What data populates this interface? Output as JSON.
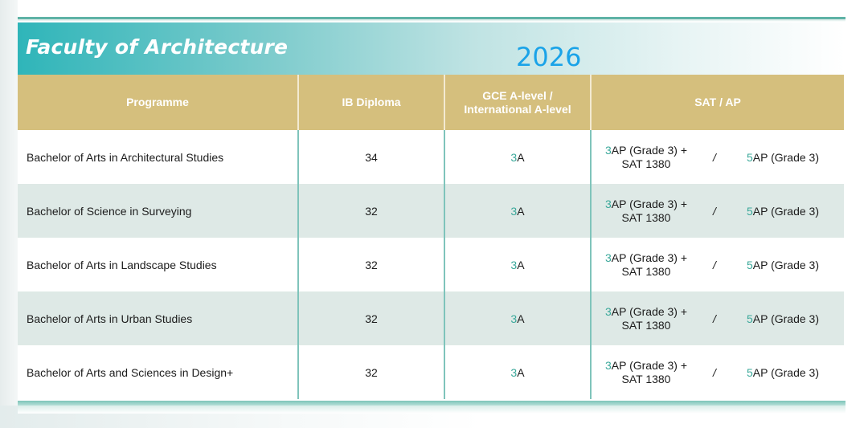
{
  "banner": {
    "title": "Faculty of Architecture",
    "year": "2026"
  },
  "table": {
    "headers": {
      "programme": "Programme",
      "ib": "IB Diploma",
      "gce_line1": "GCE A-level /",
      "gce_line2": "International A-level",
      "sat": "SAT / AP"
    },
    "rows": [
      {
        "programme": "Bachelor of Arts in Architectural Studies",
        "ib": "34",
        "gce_num": "3",
        "gce_grade": "A",
        "sat_a_num": "3",
        "sat_a_text": "AP (Grade 3) +",
        "sat_a_line2": "SAT 1380",
        "slash": "/",
        "sat_b_num": "5",
        "sat_b_text": "AP (Grade 3)"
      },
      {
        "programme": "Bachelor of Science in Surveying",
        "ib": "32",
        "gce_num": "3",
        "gce_grade": "A",
        "sat_a_num": "3",
        "sat_a_text": "AP (Grade 3) +",
        "sat_a_line2": "SAT 1380",
        "slash": "/",
        "sat_b_num": "5",
        "sat_b_text": "AP (Grade 3)"
      },
      {
        "programme": "Bachelor of Arts in Landscape Studies",
        "ib": "32",
        "gce_num": "3",
        "gce_grade": "A",
        "sat_a_num": "3",
        "sat_a_text": "AP (Grade 3) +",
        "sat_a_line2": "SAT 1380",
        "slash": "/",
        "sat_b_num": "5",
        "sat_b_text": "AP (Grade 3)"
      },
      {
        "programme": "Bachelor of Arts in Urban Studies",
        "ib": "32",
        "gce_num": "3",
        "gce_grade": "A",
        "sat_a_num": "3",
        "sat_a_text": "AP (Grade 3) +",
        "sat_a_line2": "SAT 1380",
        "slash": "/",
        "sat_b_num": "5",
        "sat_b_text": "AP (Grade 3)"
      },
      {
        "programme": "Bachelor of Arts and Sciences in Design+",
        "ib": "32",
        "gce_num": "3",
        "gce_grade": "A",
        "sat_a_num": "3",
        "sat_a_text": "AP (Grade 3) +",
        "sat_a_line2": "SAT 1380",
        "slash": "/",
        "sat_b_num": "5",
        "sat_b_text": "AP (Grade 3)"
      }
    ]
  },
  "colors": {
    "header_gold": "#d5bf7d",
    "teal_accent": "#3aa89a",
    "year_blue": "#1aa3e8",
    "alt_row": "#dee9e6"
  }
}
